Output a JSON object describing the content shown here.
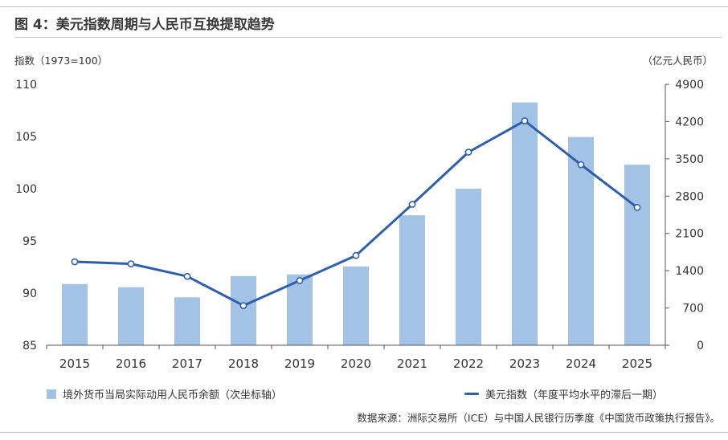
{
  "title": "图 4：美元指数周期与人民币互换提取趋势",
  "source": "数据来源：洲际交易所（ICE）与中国人民银行历季度《中国货币政策执行报告》。",
  "chart_data": {
    "type": "bar",
    "categories": [
      "2015",
      "2016",
      "2017",
      "2018",
      "2019",
      "2020",
      "2021",
      "2022",
      "2023",
      "2024",
      "2025"
    ],
    "left_axis": {
      "label": "指数（1973=100）",
      "ticks": [
        85,
        90,
        95,
        100,
        105,
        110
      ],
      "range": [
        85,
        110
      ]
    },
    "right_axis": {
      "label": "（亿元人民币）",
      "ticks": [
        0,
        700,
        1400,
        2100,
        2800,
        3500,
        4200,
        4900
      ],
      "range": [
        0,
        4900
      ]
    },
    "series": [
      {
        "name": "境外货币当局实际动用人民币余额（次坐标轴）",
        "kind": "bar",
        "axis": "right",
        "color": "#a3c3e6",
        "values": [
          1150,
          1090,
          900,
          1300,
          1330,
          1480,
          2440,
          2940,
          4560,
          3910,
          3390
        ]
      },
      {
        "name": "美元指数（年度平均水平的滞后一期）",
        "kind": "line",
        "axis": "left",
        "color": "#2f5fa8",
        "values": [
          93.0,
          92.8,
          91.6,
          88.8,
          91.2,
          93.6,
          98.5,
          103.5,
          106.5,
          102.3,
          98.2
        ]
      }
    ],
    "grid": false,
    "legend_position": "bottom"
  }
}
